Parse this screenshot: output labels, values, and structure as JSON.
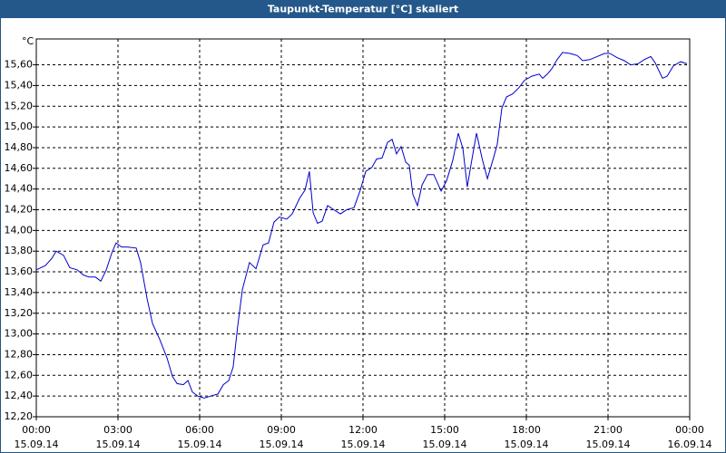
{
  "chart_data": {
    "type": "line",
    "title": "Taupunkt-Temperatur [°C] skaliert",
    "ylabel": "°C",
    "color": "#0000cc",
    "grid": true,
    "xlim": [
      0,
      24
    ],
    "ylim": [
      12.2,
      15.85
    ],
    "xticks": [
      {
        "value": 0,
        "label": "00:00"
      },
      {
        "value": 3,
        "label": "03:00"
      },
      {
        "value": 6,
        "label": "06:00"
      },
      {
        "value": 9,
        "label": "09:00"
      },
      {
        "value": 12,
        "label": "12:00"
      },
      {
        "value": 15,
        "label": "15:00"
      },
      {
        "value": 18,
        "label": "18:00"
      },
      {
        "value": 21,
        "label": "21:00"
      },
      {
        "value": 24,
        "label": "00:00"
      }
    ],
    "xtick_dates": [
      "15.09.14",
      "15.09.14",
      "15.09.14",
      "15.09.14",
      "15.09.14",
      "15.09.14",
      "15.09.14",
      "15.09.14",
      "16.09.14"
    ],
    "yticks": [
      {
        "value": 12.2,
        "label": "12,20"
      },
      {
        "value": 12.4,
        "label": "12,40"
      },
      {
        "value": 12.6,
        "label": "12,60"
      },
      {
        "value": 12.8,
        "label": "12,80"
      },
      {
        "value": 13.0,
        "label": "13,00"
      },
      {
        "value": 13.2,
        "label": "13,20"
      },
      {
        "value": 13.4,
        "label": "13,40"
      },
      {
        "value": 13.6,
        "label": "13,60"
      },
      {
        "value": 13.8,
        "label": "13,80"
      },
      {
        "value": 14.0,
        "label": "14,00"
      },
      {
        "value": 14.2,
        "label": "14,20"
      },
      {
        "value": 14.4,
        "label": "14,40"
      },
      {
        "value": 14.6,
        "label": "14,60"
      },
      {
        "value": 14.8,
        "label": "14,80"
      },
      {
        "value": 15.0,
        "label": "15,00"
      },
      {
        "value": 15.2,
        "label": "15,20"
      },
      {
        "value": 15.4,
        "label": "15,40"
      },
      {
        "value": 15.6,
        "label": "15,60"
      }
    ],
    "x": [
      0,
      0.33,
      0.57,
      0.73,
      1,
      1.23,
      1.5,
      1.73,
      1.93,
      2.17,
      2.37,
      2.57,
      2.77,
      2.93,
      3.13,
      3.33,
      3.67,
      3.83,
      4.07,
      4.27,
      4.53,
      4.8,
      5,
      5.17,
      5.4,
      5.57,
      5.73,
      5.93,
      6.17,
      6.4,
      6.67,
      6.87,
      7.07,
      7.23,
      7.4,
      7.57,
      7.83,
      8.07,
      8.33,
      8.53,
      8.73,
      8.93,
      9.2,
      9.4,
      9.67,
      9.87,
      10.03,
      10.17,
      10.33,
      10.5,
      10.7,
      10.93,
      11.17,
      11.4,
      11.67,
      11.9,
      12.1,
      12.33,
      12.5,
      12.7,
      12.9,
      13.07,
      13.23,
      13.4,
      13.57,
      13.7,
      13.83,
      14,
      14.17,
      14.37,
      14.6,
      14.87,
      15.07,
      15.3,
      15.5,
      15.67,
      15.83,
      15.97,
      16.17,
      16.37,
      16.57,
      16.77,
      16.93,
      17.1,
      17.27,
      17.5,
      17.73,
      17.93,
      18.2,
      18.47,
      18.6,
      18.77,
      18.93,
      19.13,
      19.33,
      19.6,
      19.87,
      20.07,
      20.33,
      20.6,
      20.87,
      21.07,
      21.33,
      21.6,
      21.83,
      22.1,
      22.33,
      22.57,
      22.73,
      23,
      23.17,
      23.4,
      23.67,
      23.9
    ],
    "values": [
      13.62,
      13.66,
      13.73,
      13.8,
      13.76,
      13.64,
      13.62,
      13.57,
      13.55,
      13.55,
      13.51,
      13.62,
      13.78,
      13.88,
      13.84,
      13.84,
      13.83,
      13.69,
      13.34,
      13.1,
      12.95,
      12.77,
      12.59,
      12.52,
      12.51,
      12.55,
      12.44,
      12.4,
      12.38,
      12.4,
      12.42,
      12.51,
      12.55,
      12.68,
      13.08,
      13.43,
      13.69,
      13.63,
      13.86,
      13.88,
      14.08,
      14.13,
      14.11,
      14.16,
      14.31,
      14.39,
      14.57,
      14.17,
      14.07,
      14.09,
      14.24,
      14.2,
      14.16,
      14.2,
      14.22,
      14.39,
      14.57,
      14.61,
      14.69,
      14.7,
      14.85,
      14.88,
      14.74,
      14.81,
      14.66,
      14.63,
      14.35,
      14.24,
      14.44,
      14.54,
      14.54,
      14.38,
      14.48,
      14.68,
      14.94,
      14.79,
      14.42,
      14.64,
      14.94,
      14.7,
      14.5,
      14.68,
      14.83,
      15.18,
      15.29,
      15.32,
      15.38,
      15.45,
      15.49,
      15.51,
      15.47,
      15.51,
      15.56,
      15.65,
      15.72,
      15.71,
      15.69,
      15.64,
      15.65,
      15.68,
      15.71,
      15.71,
      15.67,
      15.64,
      15.6,
      15.61,
      15.65,
      15.68,
      15.62,
      15.47,
      15.49,
      15.59,
      15.63,
      15.61
    ]
  }
}
